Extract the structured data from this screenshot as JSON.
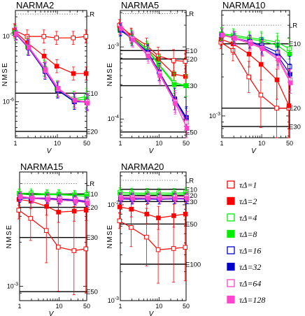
{
  "chart_data": [
    {
      "type": "line",
      "title": "NARMA2",
      "xlabel": "V",
      "ylabel": "NMSE",
      "xscale": "log",
      "yscale": "log",
      "xlim": [
        1,
        50
      ],
      "ylim": [
        2.8e-07,
        2.5e-05
      ],
      "x_ticks": [
        1,
        10,
        50
      ],
      "y_ticks": [
        {
          "value": 1e-06,
          "label": "10-6"
        },
        {
          "value": 1e-05,
          "label": "10-5"
        }
      ],
      "x": [
        1,
        2,
        5,
        10,
        25,
        50
      ],
      "reference_lines": [
        {
          "label": "LR",
          "value": 2.2e-05,
          "style": "dotted"
        },
        {
          "label": "E10",
          "value": 1.35e-06
        },
        {
          "label": "E20",
          "value": 3.5e-07
        }
      ],
      "series": [
        {
          "name": "τΔ=1",
          "values": [
            1.25e-05,
            1e-05,
            1e-05,
            9.5e-06,
            9.5e-06,
            1e-05
          ],
          "err": [
            0.1,
            0.1,
            0.1,
            0.1,
            0.1,
            0.1
          ]
        },
        {
          "name": "τΔ=2",
          "values": [
            1.2e-05,
            8e-06,
            5e-06,
            3.5e-06,
            2.7e-06,
            2.7e-06
          ],
          "err": [
            0.1,
            0.1,
            0.1,
            0.1,
            0.1,
            0.1
          ]
        },
        {
          "name": "τΔ=4",
          "values": [
            1.15e-05,
            7e-06,
            3.3e-06,
            1.6e-06,
            1.1e-06,
            1.2e-06
          ],
          "err": [
            0.1,
            0.12,
            0.12,
            0.12,
            0.12,
            0.12
          ]
        },
        {
          "name": "τΔ=8",
          "values": [
            1.15e-05,
            7e-06,
            3.2e-06,
            1.55e-06,
            1.05e-06,
            1.1e-06
          ],
          "err": [
            0.1,
            0.12,
            0.12,
            0.12,
            0.12,
            0.12
          ]
        },
        {
          "name": "τΔ=16",
          "values": [
            1.1e-05,
            6.8e-06,
            3e-06,
            1.5e-06,
            1e-06,
            1e-06
          ],
          "err": [
            0.1,
            0.12,
            0.12,
            0.12,
            0.12,
            0.12
          ]
        },
        {
          "name": "τΔ=32",
          "values": [
            1.1e-05,
            6.7e-06,
            2.9e-06,
            1.5e-06,
            1e-06,
            9.8e-07
          ],
          "err": [
            0.1,
            0.12,
            0.12,
            0.12,
            0.12,
            0.12
          ]
        },
        {
          "name": "τΔ=64",
          "values": [
            1.1e-05,
            6.8e-06,
            3e-06,
            1.55e-06,
            1.05e-06,
            1e-06
          ],
          "err": [
            0.1,
            0.12,
            0.12,
            0.12,
            0.12,
            0.12
          ]
        },
        {
          "name": "τΔ=128",
          "values": [
            1.1e-05,
            6.9e-06,
            3.1e-06,
            1.6e-06,
            1.05e-06,
            9.5e-07
          ],
          "err": [
            0.1,
            0.12,
            0.12,
            0.12,
            0.12,
            0.12
          ]
        }
      ]
    },
    {
      "type": "line",
      "title": "NARMA5",
      "xlabel": "V",
      "ylabel": "NMSE",
      "xscale": "log",
      "yscale": "log",
      "xlim": [
        1,
        50
      ],
      "ylim": [
        5.5e-05,
        0.0032
      ],
      "x_ticks": [
        1,
        10,
        50
      ],
      "y_ticks": [
        {
          "value": 0.0001,
          "label": "10-4"
        },
        {
          "value": 0.001,
          "label": "10-3"
        }
      ],
      "x": [
        1,
        2,
        5,
        10,
        25,
        50
      ],
      "reference_lines": [
        {
          "label": "LR",
          "value": 0.0029,
          "style": "dotted"
        },
        {
          "label": "E10",
          "value": 0.00089
        },
        {
          "label": "E20",
          "value": 0.00068
        },
        {
          "label": "E30",
          "value": 0.00029
        },
        {
          "label": "E50",
          "value": 6.6e-05
        }
      ],
      "series": [
        {
          "name": "τΔ=1",
          "values": [
            0.002,
            0.00145,
            0.00105,
            0.00075,
            0.00065,
            0.00063
          ],
          "err": [
            0.08,
            0.1,
            0.1,
            0.12,
            0.15,
            0.15
          ]
        },
        {
          "name": "τΔ=2",
          "values": [
            0.0018,
            0.0014,
            0.00095,
            0.00068,
            0.00042,
            0.00039
          ],
          "err": [
            0.08,
            0.1,
            0.1,
            0.12,
            0.15,
            0.15
          ]
        },
        {
          "name": "τΔ=4",
          "values": [
            0.0017,
            0.00135,
            0.00095,
            0.00058,
            0.00032,
            0.00029
          ],
          "err": [
            0.08,
            0.1,
            0.1,
            0.12,
            0.15,
            0.15
          ]
        },
        {
          "name": "τΔ=8",
          "values": [
            0.0017,
            0.0013,
            0.0009,
            0.00056,
            0.0003,
            0.00029
          ],
          "err": [
            0.08,
            0.1,
            0.1,
            0.12,
            0.15,
            0.15
          ]
        },
        {
          "name": "τΔ=16",
          "values": [
            0.0017,
            0.0013,
            0.00085,
            0.00045,
            0.00019,
            0.0001
          ],
          "err": [
            0.08,
            0.1,
            0.1,
            0.12,
            0.15,
            0.15
          ]
        },
        {
          "name": "τΔ=32",
          "values": [
            0.00175,
            0.0013,
            0.00085,
            0.00045,
            0.00019,
            0.000105
          ],
          "err": [
            0.08,
            0.1,
            0.1,
            0.12,
            0.15,
            0.15
          ]
        },
        {
          "name": "τΔ=64",
          "values": [
            0.0018,
            0.0013,
            0.0008,
            0.00043,
            0.000175,
            9e-05
          ],
          "err": [
            0.08,
            0.1,
            0.1,
            0.12,
            0.15,
            0.15
          ]
        },
        {
          "name": "τΔ=128",
          "values": [
            0.0018,
            0.00125,
            0.00075,
            0.0004,
            0.000165,
            7.5e-05
          ],
          "err": [
            0.08,
            0.1,
            0.1,
            0.12,
            0.15,
            0.15
          ]
        }
      ]
    },
    {
      "type": "line",
      "title": "NARMA10",
      "xlabel": "V",
      "ylabel": "",
      "xscale": "log",
      "yscale": "log",
      "xlim": [
        1,
        50
      ],
      "ylim": [
        0.00068,
        0.0065
      ],
      "x_ticks": [
        1,
        10,
        50
      ],
      "y_ticks": [
        {
          "value": 0.001,
          "label": "10-3"
        }
      ],
      "x": [
        1,
        2,
        5,
        10,
        25,
        50
      ],
      "reference_lines": [
        {
          "label": "LR",
          "value": 0.005,
          "style": "dotted"
        },
        {
          "label": "E10",
          "value": 0.0036
        },
        {
          "label": "E20",
          "value": 0.00115
        },
        {
          "label": "E30",
          "value": 0.00083
        }
      ],
      "series": [
        {
          "name": "τΔ=1",
          "values": [
            0.0037,
            0.0032,
            0.002,
            0.00145,
            0.00115,
            0.00115
          ],
          "err": [
            0.05,
            0.08,
            0.12,
            0.25,
            0.3,
            0.3
          ]
        },
        {
          "name": "τΔ=2",
          "values": [
            0.0039,
            0.0036,
            0.003,
            0.0025,
            0.0019,
            0.0012
          ],
          "err": [
            0.05,
            0.08,
            0.1,
            0.12,
            0.15,
            0.18
          ]
        },
        {
          "name": "τΔ=4",
          "values": [
            0.0043,
            0.0042,
            0.004,
            0.0039,
            0.0037,
            0.0033
          ],
          "err": [
            0.05,
            0.05,
            0.05,
            0.06,
            0.07,
            0.08
          ]
        },
        {
          "name": "τΔ=8",
          "values": [
            0.00425,
            0.0041,
            0.0039,
            0.0038,
            0.0035,
            0.003
          ],
          "err": [
            0.05,
            0.05,
            0.05,
            0.06,
            0.07,
            0.08
          ]
        },
        {
          "name": "τΔ=16",
          "values": [
            0.0042,
            0.004,
            0.00375,
            0.0035,
            0.0031,
            0.0024
          ],
          "err": [
            0.05,
            0.05,
            0.05,
            0.06,
            0.07,
            0.08
          ]
        },
        {
          "name": "τΔ=32",
          "values": [
            0.0042,
            0.004,
            0.0037,
            0.0034,
            0.0029,
            0.0021
          ],
          "err": [
            0.05,
            0.05,
            0.05,
            0.06,
            0.07,
            0.08
          ]
        },
        {
          "name": "τΔ=64",
          "values": [
            0.0042,
            0.004,
            0.0037,
            0.00335,
            0.0028,
            0.0019
          ],
          "err": [
            0.05,
            0.05,
            0.05,
            0.06,
            0.07,
            0.08
          ]
        },
        {
          "name": "τΔ=128",
          "values": [
            0.0042,
            0.00395,
            0.0036,
            0.0033,
            0.0027,
            0.0018
          ],
          "err": [
            0.05,
            0.05,
            0.05,
            0.06,
            0.07,
            0.08
          ]
        }
      ]
    },
    {
      "type": "line",
      "title": "NARMA15",
      "xlabel": "V",
      "ylabel": "NMSE",
      "xscale": "log",
      "yscale": "log",
      "xlim": [
        1,
        50
      ],
      "ylim": [
        0.0008,
        0.006
      ],
      "x_ticks": [
        1,
        10,
        50
      ],
      "y_ticks": [
        {
          "value": 0.001,
          "label": "10-3"
        }
      ],
      "x": [
        1,
        2,
        5,
        10,
        25,
        50
      ],
      "reference_lines": [
        {
          "label": "LR",
          "value": 0.005,
          "style": "dotted"
        },
        {
          "label": "E10",
          "value": 0.00425
        },
        {
          "label": "E20",
          "value": 0.00345
        },
        {
          "label": "E30",
          "value": 0.00215
        },
        {
          "label": "E50",
          "value": 0.00092
        }
      ],
      "series": [
        {
          "name": "τΔ=1",
          "values": [
            0.0033,
            0.0029,
            0.0024,
            0.00185,
            0.00175,
            0.0018
          ],
          "err": [
            0.06,
            0.15,
            0.22,
            0.3,
            0.3,
            0.3
          ]
        },
        {
          "name": "τΔ=2",
          "values": [
            0.0039,
            0.0038,
            0.0035,
            0.0032,
            0.00325,
            0.0033
          ],
          "err": [
            0.04,
            0.05,
            0.06,
            0.07,
            0.07,
            0.07
          ]
        },
        {
          "name": "τΔ=4",
          "values": [
            0.0043,
            0.0043,
            0.00425,
            0.00425,
            0.0042,
            0.0042
          ],
          "err": [
            0.03,
            0.03,
            0.03,
            0.03,
            0.03,
            0.03
          ]
        },
        {
          "name": "τΔ=8",
          "values": [
            0.00425,
            0.0042,
            0.0042,
            0.0042,
            0.00415,
            0.0041
          ],
          "err": [
            0.03,
            0.03,
            0.03,
            0.03,
            0.03,
            0.03
          ]
        },
        {
          "name": "τΔ=16",
          "values": [
            0.004,
            0.00395,
            0.00395,
            0.0039,
            0.0039,
            0.0038
          ],
          "err": [
            0.03,
            0.03,
            0.03,
            0.03,
            0.03,
            0.03
          ]
        },
        {
          "name": "τΔ=32",
          "values": [
            0.00405,
            0.004,
            0.00395,
            0.0039,
            0.00385,
            0.00375
          ],
          "err": [
            0.03,
            0.03,
            0.03,
            0.03,
            0.03,
            0.03
          ]
        },
        {
          "name": "τΔ=64",
          "values": [
            0.0041,
            0.004,
            0.004,
            0.00395,
            0.0039,
            0.0038
          ],
          "err": [
            0.03,
            0.03,
            0.03,
            0.03,
            0.03,
            0.03
          ]
        },
        {
          "name": "τΔ=128",
          "values": [
            0.00405,
            0.00395,
            0.0039,
            0.00385,
            0.0038,
            0.0037
          ],
          "err": [
            0.03,
            0.03,
            0.03,
            0.03,
            0.03,
            0.03
          ]
        }
      ]
    },
    {
      "type": "line",
      "title": "NARMA20",
      "xlabel": "V",
      "ylabel": "NMSE",
      "xscale": "log",
      "yscale": "log",
      "xlim": [
        1,
        50
      ],
      "ylim": [
        0.001,
        0.022
      ],
      "x_ticks": [
        1,
        10,
        50
      ],
      "y_ticks": [
        {
          "value": 0.001,
          "label": "10-3"
        },
        {
          "value": 0.01,
          "label": "10-2"
        }
      ],
      "x": [
        1,
        2,
        5,
        10,
        25,
        50
      ],
      "reference_lines": [
        {
          "label": "LR",
          "value": 0.018,
          "style": "dotted"
        },
        {
          "label": "E10",
          "value": 0.0145
        },
        {
          "label": "E20",
          "value": 0.0125
        },
        {
          "label": "E30",
          "value": 0.0108
        },
        {
          "label": "E50",
          "value": 0.0063
        },
        {
          "label": "E100",
          "value": 0.0024
        }
      ],
      "series": [
        {
          "name": "τΔ=1",
          "values": [
            0.0068,
            0.0058,
            0.0046,
            0.0034,
            0.0035,
            0.0036
          ],
          "err": [
            0.08,
            0.2,
            0.3,
            0.35,
            0.35,
            0.35
          ]
        },
        {
          "name": "τΔ=2",
          "values": [
            0.0095,
            0.009,
            0.008,
            0.0073,
            0.0077,
            0.008
          ],
          "err": [
            0.06,
            0.08,
            0.1,
            0.12,
            0.12,
            0.12
          ]
        },
        {
          "name": "τΔ=4",
          "values": [
            0.0135,
            0.0133,
            0.0132,
            0.0133,
            0.0132,
            0.0134
          ],
          "err": [
            0.05,
            0.05,
            0.05,
            0.05,
            0.05,
            0.05
          ]
        },
        {
          "name": "τΔ=8",
          "values": [
            0.013,
            0.0128,
            0.0128,
            0.0127,
            0.0128,
            0.0129
          ],
          "err": [
            0.05,
            0.05,
            0.05,
            0.05,
            0.05,
            0.05
          ]
        },
        {
          "name": "τΔ=16",
          "values": [
            0.0115,
            0.0114,
            0.0115,
            0.0114,
            0.0115,
            0.0115
          ],
          "err": [
            0.05,
            0.05,
            0.05,
            0.05,
            0.05,
            0.05
          ]
        },
        {
          "name": "τΔ=32",
          "values": [
            0.0118,
            0.0117,
            0.0117,
            0.0116,
            0.0117,
            0.0117
          ],
          "err": [
            0.05,
            0.05,
            0.05,
            0.05,
            0.05,
            0.05
          ]
        },
        {
          "name": "τΔ=64",
          "values": [
            0.012,
            0.012,
            0.0121,
            0.012,
            0.0121,
            0.0122
          ],
          "err": [
            0.05,
            0.05,
            0.05,
            0.05,
            0.05,
            0.05
          ]
        },
        {
          "name": "τΔ=128",
          "values": [
            0.0117,
            0.0116,
            0.0117,
            0.0116,
            0.0116,
            0.0117
          ],
          "err": [
            0.05,
            0.05,
            0.05,
            0.05,
            0.05,
            0.05
          ]
        }
      ]
    }
  ],
  "legend": {
    "placement": "right",
    "items": [
      {
        "label": "τΔ=1",
        "color": "#ff0000",
        "filled": false
      },
      {
        "label": "τΔ=2",
        "color": "#ff0000",
        "filled": true
      },
      {
        "label": "τΔ=4",
        "color": "#00ee00",
        "filled": false
      },
      {
        "label": "τΔ=8",
        "color": "#00ee00",
        "filled": true
      },
      {
        "label": "τΔ=16",
        "color": "#0000cc",
        "filled": false
      },
      {
        "label": "τΔ=32",
        "color": "#0000cc",
        "filled": true
      },
      {
        "label": "τΔ=64",
        "color": "#ff44cc",
        "filled": false
      },
      {
        "label": "τΔ=128",
        "color": "#ff44cc",
        "filled": true
      }
    ]
  },
  "colors": {
    "tau_1_2": "#ff0000",
    "tau_4_8": "#00ee00",
    "tau_16_32": "#0000cc",
    "tau_64_128": "#ff44cc",
    "reference_line": "#000000",
    "lr_line": "#888888"
  }
}
